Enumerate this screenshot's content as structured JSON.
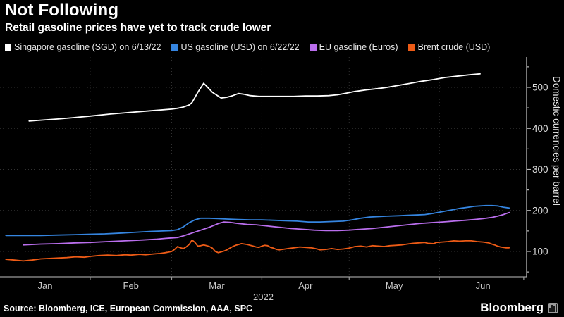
{
  "header": {
    "title": "Not Following",
    "subtitle": "Retail gasoline prices have yet to track crude lower"
  },
  "footer": {
    "source": "Source: Bloomberg, ICE, European Commission, AAA, SPC",
    "brand": "Bloomberg",
    "brand_icon": "bloomberg-bars-icon"
  },
  "chart_data": {
    "type": "line",
    "x_unit": "day_of_year_2022",
    "x_axis": {
      "year_label": "2022",
      "month_labels": [
        "Jan",
        "Feb",
        "Mar",
        "Apr",
        "May",
        "Jun"
      ],
      "month_boundary_days": [
        0,
        31,
        59,
        90,
        120,
        151,
        181
      ],
      "tick_days": [
        31,
        59,
        90,
        120,
        151,
        180
      ],
      "grid_days": [
        31,
        59,
        90,
        120,
        151
      ]
    },
    "y_axis": {
      "title": "Domestic currencies per barrel",
      "major_ticks": [
        100,
        200,
        300,
        400,
        500
      ],
      "minor_ticks": [
        50,
        150,
        250,
        350,
        450,
        550
      ],
      "grid_values": [
        100,
        200,
        300,
        400,
        500
      ],
      "range_shown": [
        40,
        575
      ]
    },
    "series": [
      {
        "name": "Singapore gasoline (SGD) on 6/13/22",
        "color": "#FFFFFF",
        "points": [
          [
            10,
            418
          ],
          [
            14,
            420
          ],
          [
            20,
            423
          ],
          [
            25,
            426
          ],
          [
            31,
            430
          ],
          [
            38,
            435
          ],
          [
            45,
            439
          ],
          [
            52,
            443
          ],
          [
            59,
            447
          ],
          [
            61,
            449
          ],
          [
            63,
            452
          ],
          [
            65,
            457
          ],
          [
            66,
            463
          ],
          [
            68,
            488
          ],
          [
            70,
            510
          ],
          [
            71,
            503
          ],
          [
            73,
            488
          ],
          [
            76,
            474
          ],
          [
            78,
            476
          ],
          [
            80,
            480
          ],
          [
            82,
            485
          ],
          [
            84,
            483
          ],
          [
            86,
            480
          ],
          [
            89,
            478
          ],
          [
            93,
            478
          ],
          [
            97,
            478
          ],
          [
            101,
            478
          ],
          [
            105,
            479
          ],
          [
            109,
            479
          ],
          [
            113,
            480
          ],
          [
            116,
            482
          ],
          [
            119,
            486
          ],
          [
            122,
            490
          ],
          [
            126,
            494
          ],
          [
            130,
            497
          ],
          [
            133,
            500
          ],
          [
            137,
            505
          ],
          [
            141,
            510
          ],
          [
            145,
            515
          ],
          [
            149,
            519
          ],
          [
            153,
            524
          ],
          [
            158,
            528
          ],
          [
            162,
            531
          ],
          [
            165,
            533
          ]
        ]
      },
      {
        "name": "US gasoline (USD) on 6/22/22",
        "color": "#3585E0",
        "points": [
          [
            2,
            139
          ],
          [
            8,
            139
          ],
          [
            14,
            139
          ],
          [
            20,
            140
          ],
          [
            26,
            141
          ],
          [
            31,
            142
          ],
          [
            36,
            143
          ],
          [
            42,
            145
          ],
          [
            47,
            147
          ],
          [
            52,
            149
          ],
          [
            56,
            150
          ],
          [
            59,
            151
          ],
          [
            61,
            153
          ],
          [
            63,
            160
          ],
          [
            65,
            170
          ],
          [
            67,
            177
          ],
          [
            69,
            181
          ],
          [
            72,
            181
          ],
          [
            75,
            180
          ],
          [
            78,
            179
          ],
          [
            82,
            178
          ],
          [
            86,
            177
          ],
          [
            90,
            177
          ],
          [
            94,
            176
          ],
          [
            98,
            175
          ],
          [
            102,
            174
          ],
          [
            106,
            172
          ],
          [
            110,
            172
          ],
          [
            114,
            173
          ],
          [
            118,
            174
          ],
          [
            121,
            177
          ],
          [
            124,
            181
          ],
          [
            127,
            184
          ],
          [
            130,
            185
          ],
          [
            133,
            186
          ],
          [
            137,
            187
          ],
          [
            140,
            188
          ],
          [
            143,
            189
          ],
          [
            146,
            190
          ],
          [
            149,
            193
          ],
          [
            152,
            197
          ],
          [
            155,
            201
          ],
          [
            158,
            205
          ],
          [
            161,
            208
          ],
          [
            163,
            210
          ],
          [
            165,
            211
          ],
          [
            167,
            212
          ],
          [
            169,
            212
          ],
          [
            171,
            211
          ],
          [
            173,
            208
          ],
          [
            175,
            206
          ]
        ]
      },
      {
        "name": "EU gasoline (Euros)",
        "color": "#BA6EED",
        "points": [
          [
            8,
            116
          ],
          [
            14,
            118
          ],
          [
            20,
            119
          ],
          [
            26,
            121
          ],
          [
            31,
            122
          ],
          [
            37,
            124
          ],
          [
            43,
            126
          ],
          [
            49,
            128
          ],
          [
            54,
            130
          ],
          [
            57,
            132
          ],
          [
            59,
            133
          ],
          [
            61,
            134
          ],
          [
            63,
            138
          ],
          [
            66,
            145
          ],
          [
            69,
            152
          ],
          [
            72,
            159
          ],
          [
            75,
            168
          ],
          [
            77,
            172
          ],
          [
            79,
            171
          ],
          [
            81,
            169
          ],
          [
            85,
            166
          ],
          [
            88,
            165
          ],
          [
            92,
            162
          ],
          [
            96,
            159
          ],
          [
            100,
            156
          ],
          [
            104,
            154
          ],
          [
            108,
            152
          ],
          [
            112,
            151
          ],
          [
            116,
            151
          ],
          [
            120,
            152
          ],
          [
            124,
            154
          ],
          [
            128,
            156
          ],
          [
            132,
            159
          ],
          [
            136,
            162
          ],
          [
            140,
            165
          ],
          [
            144,
            168
          ],
          [
            148,
            170
          ],
          [
            152,
            172
          ],
          [
            156,
            174
          ],
          [
            160,
            176
          ],
          [
            163,
            178
          ],
          [
            166,
            180
          ],
          [
            169,
            183
          ],
          [
            171,
            186
          ],
          [
            173,
            190
          ],
          [
            175,
            195
          ]
        ]
      },
      {
        "name": "Brent crude (USD)",
        "color": "#ED5B16",
        "points": [
          [
            2,
            81
          ],
          [
            5,
            79
          ],
          [
            8,
            77
          ],
          [
            11,
            79
          ],
          [
            14,
            82
          ],
          [
            17,
            83
          ],
          [
            20,
            84
          ],
          [
            23,
            85
          ],
          [
            26,
            87
          ],
          [
            29,
            86
          ],
          [
            31,
            88
          ],
          [
            34,
            90
          ],
          [
            37,
            91
          ],
          [
            40,
            90
          ],
          [
            43,
            92
          ],
          [
            45,
            91
          ],
          [
            48,
            93
          ],
          [
            50,
            92
          ],
          [
            53,
            94
          ],
          [
            55,
            95
          ],
          [
            57,
            97
          ],
          [
            59,
            100
          ],
          [
            60,
            105
          ],
          [
            61,
            112
          ],
          [
            62,
            109
          ],
          [
            63,
            107
          ],
          [
            64,
            111
          ],
          [
            65,
            117
          ],
          [
            66,
            128
          ],
          [
            67,
            122
          ],
          [
            68,
            113
          ],
          [
            69,
            114
          ],
          [
            70,
            116
          ],
          [
            71,
            114
          ],
          [
            72,
            112
          ],
          [
            73,
            108
          ],
          [
            74,
            100
          ],
          [
            75,
            97
          ],
          [
            76,
            99
          ],
          [
            77,
            101
          ],
          [
            78,
            104
          ],
          [
            79,
            108
          ],
          [
            80,
            112
          ],
          [
            81,
            115
          ],
          [
            82,
            117
          ],
          [
            83,
            119
          ],
          [
            84,
            118
          ],
          [
            85,
            117
          ],
          [
            86,
            115
          ],
          [
            87,
            113
          ],
          [
            88,
            111
          ],
          [
            89,
            110
          ],
          [
            90,
            113
          ],
          [
            91,
            115
          ],
          [
            92,
            114
          ],
          [
            93,
            110
          ],
          [
            94,
            108
          ],
          [
            95,
            105
          ],
          [
            96,
            104
          ],
          [
            97,
            105
          ],
          [
            99,
            107
          ],
          [
            101,
            109
          ],
          [
            103,
            111
          ],
          [
            105,
            110
          ],
          [
            107,
            109
          ],
          [
            109,
            106
          ],
          [
            110,
            104
          ],
          [
            112,
            105
          ],
          [
            114,
            107
          ],
          [
            116,
            105
          ],
          [
            118,
            106
          ],
          [
            120,
            108
          ],
          [
            122,
            112
          ],
          [
            124,
            113
          ],
          [
            126,
            111
          ],
          [
            128,
            114
          ],
          [
            130,
            113
          ],
          [
            132,
            112
          ],
          [
            134,
            114
          ],
          [
            136,
            115
          ],
          [
            138,
            116
          ],
          [
            140,
            118
          ],
          [
            142,
            120
          ],
          [
            144,
            121
          ],
          [
            146,
            122
          ],
          [
            147,
            120
          ],
          [
            149,
            119
          ],
          [
            150,
            122
          ],
          [
            152,
            123
          ],
          [
            154,
            124
          ],
          [
            156,
            126
          ],
          [
            158,
            125
          ],
          [
            160,
            126
          ],
          [
            162,
            126
          ],
          [
            164,
            124
          ],
          [
            166,
            123
          ],
          [
            168,
            121
          ],
          [
            169,
            118
          ],
          [
            170,
            116
          ],
          [
            171,
            113
          ],
          [
            172,
            111
          ],
          [
            173,
            110
          ],
          [
            174,
            109
          ],
          [
            175,
            109
          ]
        ]
      }
    ]
  }
}
